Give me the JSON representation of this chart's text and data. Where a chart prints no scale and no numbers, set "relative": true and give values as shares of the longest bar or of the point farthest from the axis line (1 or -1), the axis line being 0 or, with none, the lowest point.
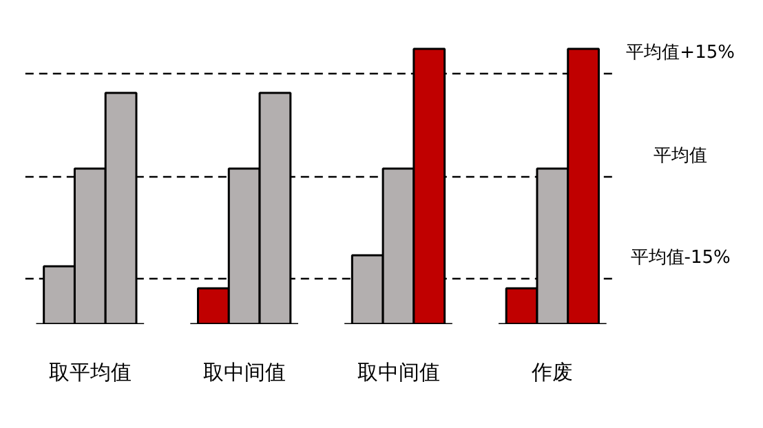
{
  "chart_data": {
    "type": "bar",
    "relative": true,
    "categories": [
      "取平均值",
      "取中间值",
      "取中间值",
      "作废"
    ],
    "series": [
      {
        "colors": [
          "#b3afaf",
          "#c00000",
          "#b3afaf",
          "#c00000"
        ],
        "values": [
          0.21,
          0.13,
          0.25,
          0.13
        ]
      },
      {
        "colors": [
          "#b3afaf",
          "#b3afaf",
          "#b3afaf",
          "#b3afaf"
        ],
        "values": [
          0.565,
          0.565,
          0.565,
          0.565
        ]
      },
      {
        "colors": [
          "#b3afaf",
          "#b3afaf",
          "#c00000",
          "#c00000"
        ],
        "values": [
          0.84,
          0.84,
          1,
          1
        ]
      }
    ],
    "ref_lines": [
      {
        "axis": "y",
        "value": 0.91,
        "label": "平均值+15%",
        "color": "#000000",
        "line_style": "dashed"
      },
      {
        "axis": "y",
        "value": 0.535,
        "label": "平均值",
        "color": "#000000",
        "line_style": "dashed"
      },
      {
        "axis": "y",
        "value": 0.165,
        "label": "平均值-15%",
        "color": "#000000",
        "line_style": "dashed"
      }
    ],
    "grid": false
  }
}
